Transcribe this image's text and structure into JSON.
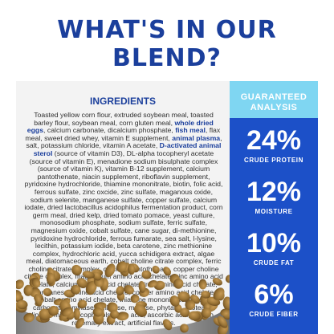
{
  "header": {
    "title": "WHAT'S IN OUR BLEND?"
  },
  "ingredients": {
    "title": "INGREDIENTS",
    "parts": [
      {
        "text": "Toasted yellow corn flour, extruded soybean meal, toasted barley flour, soybean meal, corn gluten meal, ",
        "bold": false
      },
      {
        "text": "whole dried eggs",
        "bold": true
      },
      {
        "text": ", calcium carbonate, dicalcium phosphate, ",
        "bold": false
      },
      {
        "text": "fish meal",
        "bold": true
      },
      {
        "text": ", flax meal, sweet dried whey, vitamin E supplement, ",
        "bold": false
      },
      {
        "text": "animal plasma",
        "bold": true
      },
      {
        "text": ", salt, potassium chloride, vitamin A acetate, ",
        "bold": false
      },
      {
        "text": "D-activated animal sterol",
        "bold": true
      },
      {
        "text": " (source of vitamin D3), DL-alpha tocopheryl acetate (source of vitamin E), menadione sodium bisulphate complex (source of vitamin K), vitamin B-12 supplement, calcium pantothenate, niacin supplement, riboflavin supplement, pyridoxine hydrochloride, thiamine mononitrate, biotin, folic acid, ferrous sulfate, zinc oxcide, zinc sulfate, maganous oxide, sodium selenite, manganese sulfate, copper sulfate, calcium iodate, dried lactobacillus acidophilus fermentation product, corn germ meal, dried kelp, dried tomato pomace, yeast culture, monosodium phosphate, sodium sulfate, ferric sulfate, magnesium oxide, cobalt sulfate, cane sugar, di-methionine, pyridoxine hydrochloride, ferrous fumarate, sea salt, l-lysine, lecithin, potassium iodide, beta carotene, zinc methionine complex, hydrochloric acid, yucca schidigera extract, algae meal, diatomaceous earth, cobalt choline citrate complex, ferric choline citrate complex, calcium pantothenate, copper choline citrate complex, magnesium amino acid chelate, zinc amino acid chelate, calcium amino acid chelate, iron amino acid chelate, manganese amino acid chelate, copper amino acid chelate, cobalt amino acid chelate, thiamine mononitrate, ferrous carbonate, amylase, cellulose, maltase, phytase, protease, lipase, mixed tocopherols, citric acid, ascorbic acid, lecithin, rosemary extract, artificial flavors.",
        "bold": false
      }
    ]
  },
  "analysis": {
    "title_line1": "GUARANTEED",
    "title_line2": "ANALYSIS",
    "stats": [
      {
        "value": "24%",
        "label": "CRUDE PROTEIN"
      },
      {
        "value": "12%",
        "label": "MOISTURE"
      },
      {
        "value": "10%",
        "label": "CRUDE FAT"
      },
      {
        "value": "6%",
        "label": "CRUDE FIBER"
      }
    ]
  },
  "colors": {
    "title_blue": "#1b3f9c",
    "panel_blue": "#1c50c8",
    "header_cyan": "#7fd6f2",
    "panel_gray": "#f3f3f3",
    "kibble_brown": "#9a7436"
  }
}
